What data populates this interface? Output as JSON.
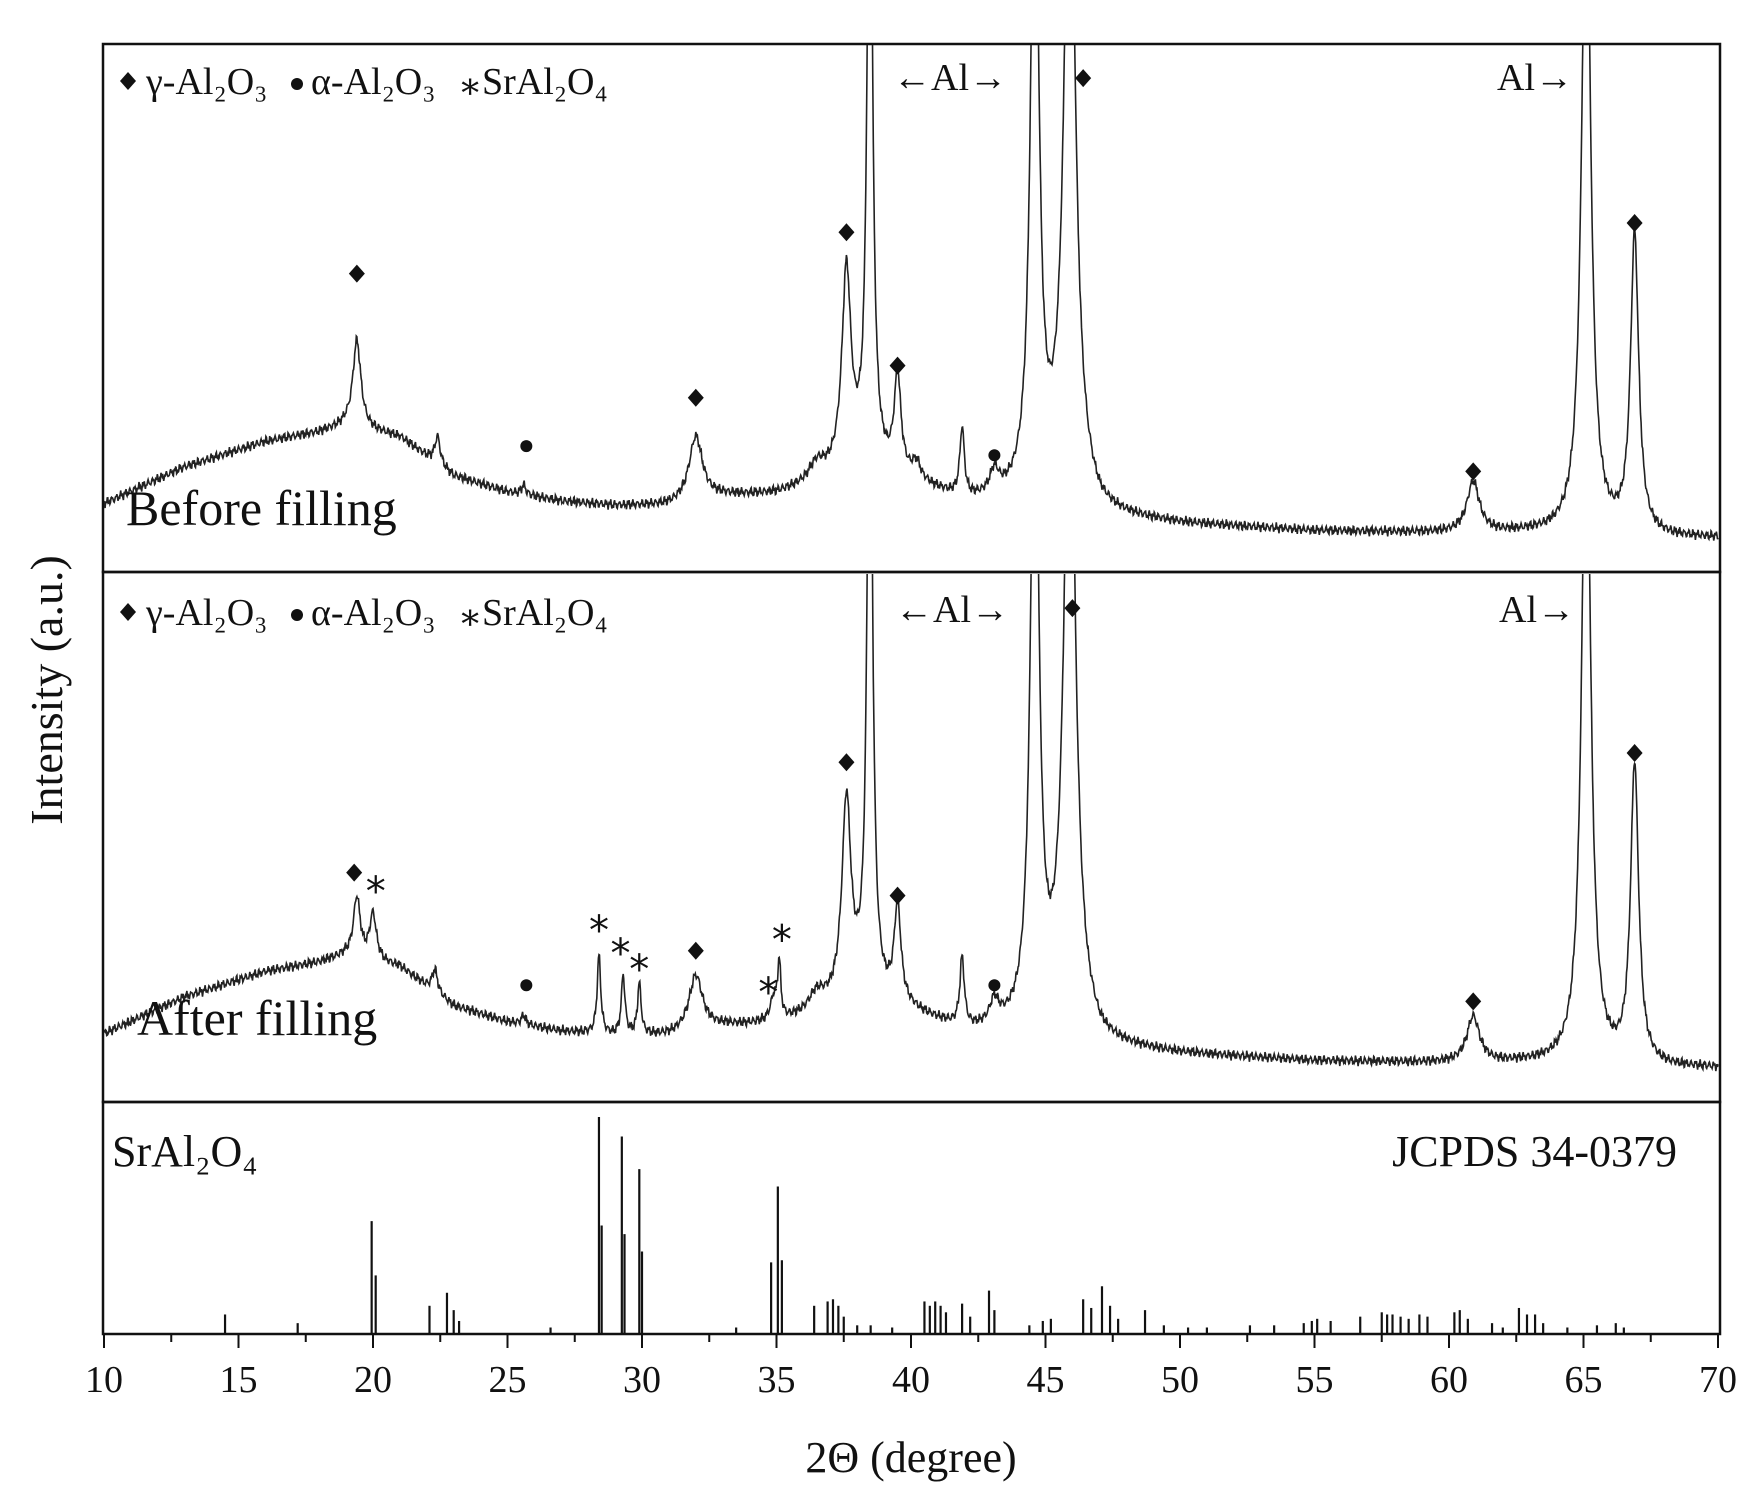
{
  "chart_data": {
    "type": "line",
    "x_axis": {
      "label": "2Θ (degree)",
      "range": [
        10,
        70
      ],
      "major_ticks": [
        10,
        15,
        20,
        25,
        30,
        35,
        40,
        45,
        50,
        55,
        60,
        65,
        70
      ],
      "minor_step": 2.5
    },
    "y_axis": {
      "label": "Intensity (a.u.)"
    },
    "legend": {
      "gamma": "γ-Al₂O₃",
      "alpha": "α-Al₂O₃",
      "sral": "SrAl₂O₄",
      "placement": "top-left of each XRD panel"
    },
    "panels": [
      {
        "label": "Before filling",
        "al_labels": [
          "←Al→",
          "Al→"
        ],
        "baseline_points": [
          [
            10,
            1.8
          ],
          [
            13,
            3.4
          ],
          [
            16,
            4.5
          ],
          [
            18,
            4.9
          ],
          [
            19,
            5.2
          ],
          [
            21,
            4.7
          ],
          [
            23,
            3.0
          ],
          [
            25,
            2.3
          ],
          [
            27,
            1.9
          ],
          [
            29,
            1.7
          ],
          [
            31,
            1.7
          ],
          [
            33,
            2.1
          ],
          [
            35,
            2.2
          ],
          [
            36.5,
            2.6
          ],
          [
            38,
            3.3
          ],
          [
            40,
            2.7
          ],
          [
            42,
            1.8
          ],
          [
            44,
            1.8
          ],
          [
            46,
            2.1
          ],
          [
            47,
            1.2
          ],
          [
            50,
            0.9
          ],
          [
            55,
            0.6
          ],
          [
            60,
            0.5
          ],
          [
            63,
            0.5
          ],
          [
            65,
            0.4
          ],
          [
            68,
            0.3
          ],
          [
            70,
            0.3
          ]
        ],
        "peaks": [
          {
            "x": 19.4,
            "h": 3.8,
            "w": 0.18
          },
          {
            "x": 22.4,
            "h": 1.2,
            "w": 0.12
          },
          {
            "x": 25.6,
            "h": 0.4,
            "w": 0.1
          },
          {
            "x": 32.0,
            "h": 2.8,
            "w": 0.3
          },
          {
            "x": 36.5,
            "h": 0.8,
            "w": 0.35
          },
          {
            "x": 37.6,
            "h": 8.6,
            "w": 0.2
          },
          {
            "x": 38.47,
            "h": 30.0,
            "w": 0.12
          },
          {
            "x": 39.5,
            "h": 4.2,
            "w": 0.15
          },
          {
            "x": 40.2,
            "h": 0.7,
            "w": 0.18
          },
          {
            "x": 41.9,
            "h": 3.0,
            "w": 0.1
          },
          {
            "x": 43.1,
            "h": 1.0,
            "w": 0.2
          },
          {
            "x": 44.6,
            "h": 30.0,
            "w": 0.18
          },
          {
            "x": 45.9,
            "h": 30.0,
            "w": 0.25
          },
          {
            "x": 60.9,
            "h": 2.2,
            "w": 0.28
          },
          {
            "x": 65.1,
            "h": 30.0,
            "w": 0.2
          },
          {
            "x": 66.9,
            "h": 13.0,
            "w": 0.18
          }
        ],
        "markers": [
          {
            "x": 19.4,
            "symbol": "diamond",
            "y": 11.8
          },
          {
            "x": 25.7,
            "symbol": "dot",
            "y": 4.3
          },
          {
            "x": 32.0,
            "symbol": "diamond",
            "y": 6.4
          },
          {
            "x": 37.6,
            "symbol": "diamond",
            "y": 13.6
          },
          {
            "x": 39.5,
            "symbol": "diamond",
            "y": 7.8
          },
          {
            "x": 43.1,
            "symbol": "dot",
            "y": 3.9
          },
          {
            "x": 46.4,
            "symbol": "diamond",
            "y": 20.3
          },
          {
            "x": 60.9,
            "symbol": "diamond",
            "y": 3.2
          },
          {
            "x": 66.9,
            "symbol": "diamond",
            "y": 14.0
          }
        ]
      },
      {
        "label": "After filling",
        "al_labels": [
          "←Al→",
          "Al→"
        ],
        "baseline_points": [
          [
            10,
            1.8
          ],
          [
            13,
            3.4
          ],
          [
            16,
            4.5
          ],
          [
            18,
            4.9
          ],
          [
            19,
            5.2
          ],
          [
            21,
            4.7
          ],
          [
            23,
            3.0
          ],
          [
            25,
            2.3
          ],
          [
            27,
            1.9
          ],
          [
            29,
            1.7
          ],
          [
            31,
            1.7
          ],
          [
            33,
            2.1
          ],
          [
            35,
            2.2
          ],
          [
            36.5,
            2.6
          ],
          [
            38,
            3.3
          ],
          [
            40,
            2.7
          ],
          [
            42,
            1.8
          ],
          [
            44,
            1.8
          ],
          [
            46,
            2.1
          ],
          [
            47,
            1.2
          ],
          [
            50,
            0.9
          ],
          [
            55,
            0.6
          ],
          [
            60,
            0.5
          ],
          [
            63,
            0.5
          ],
          [
            65,
            0.4
          ],
          [
            68,
            0.3
          ],
          [
            70,
            0.3
          ]
        ],
        "peaks": [
          {
            "x": 19.4,
            "h": 2.6,
            "w": 0.15
          },
          {
            "x": 20.0,
            "h": 2.0,
            "w": 0.15
          },
          {
            "x": 22.3,
            "h": 1.0,
            "w": 0.12
          },
          {
            "x": 25.6,
            "h": 0.4,
            "w": 0.1
          },
          {
            "x": 28.4,
            "h": 3.4,
            "w": 0.08
          },
          {
            "x": 29.3,
            "h": 2.6,
            "w": 0.08
          },
          {
            "x": 29.9,
            "h": 2.2,
            "w": 0.08
          },
          {
            "x": 32.0,
            "h": 2.4,
            "w": 0.3
          },
          {
            "x": 34.9,
            "h": 1.0,
            "w": 0.15
          },
          {
            "x": 35.1,
            "h": 2.4,
            "w": 0.07
          },
          {
            "x": 36.5,
            "h": 0.8,
            "w": 0.35
          },
          {
            "x": 37.6,
            "h": 8.6,
            "w": 0.2
          },
          {
            "x": 38.47,
            "h": 30.0,
            "w": 0.12
          },
          {
            "x": 39.5,
            "h": 4.2,
            "w": 0.15
          },
          {
            "x": 41.9,
            "h": 3.0,
            "w": 0.1
          },
          {
            "x": 43.1,
            "h": 1.0,
            "w": 0.2
          },
          {
            "x": 44.6,
            "h": 30.0,
            "w": 0.18
          },
          {
            "x": 45.9,
            "h": 30.0,
            "w": 0.25
          },
          {
            "x": 60.9,
            "h": 2.0,
            "w": 0.28
          },
          {
            "x": 65.1,
            "h": 30.0,
            "w": 0.2
          },
          {
            "x": 66.9,
            "h": 13.0,
            "w": 0.18
          }
        ],
        "markers": [
          {
            "x": 19.3,
            "symbol": "diamond",
            "y": 8.8
          },
          {
            "x": 20.1,
            "symbol": "star",
            "y": 8.0
          },
          {
            "x": 25.7,
            "symbol": "dot",
            "y": 3.9
          },
          {
            "x": 28.4,
            "symbol": "star",
            "y": 6.3
          },
          {
            "x": 29.2,
            "symbol": "star",
            "y": 5.3
          },
          {
            "x": 29.9,
            "symbol": "star",
            "y": 4.6
          },
          {
            "x": 32.0,
            "symbol": "diamond",
            "y": 5.4
          },
          {
            "x": 34.7,
            "symbol": "star",
            "y": 3.6
          },
          {
            "x": 35.2,
            "symbol": "star",
            "y": 5.9
          },
          {
            "x": 37.6,
            "symbol": "diamond",
            "y": 13.6
          },
          {
            "x": 39.5,
            "symbol": "diamond",
            "y": 7.8
          },
          {
            "x": 43.1,
            "symbol": "dot",
            "y": 3.9
          },
          {
            "x": 46.0,
            "symbol": "diamond",
            "y": 20.3
          },
          {
            "x": 60.9,
            "symbol": "diamond",
            "y": 3.2
          },
          {
            "x": 66.9,
            "symbol": "diamond",
            "y": 14.0
          }
        ]
      }
    ],
    "reference": {
      "label": "SrAl₂O₄",
      "card": "JCPDS 34-0379",
      "sticks": [
        [
          14.5,
          9
        ],
        [
          17.2,
          5
        ],
        [
          19.95,
          52
        ],
        [
          20.1,
          27
        ],
        [
          22.1,
          13
        ],
        [
          22.75,
          19
        ],
        [
          23.0,
          11
        ],
        [
          23.2,
          6
        ],
        [
          26.6,
          3
        ],
        [
          28.4,
          100
        ],
        [
          28.5,
          50
        ],
        [
          29.25,
          91
        ],
        [
          29.35,
          46
        ],
        [
          29.9,
          76
        ],
        [
          30.0,
          38
        ],
        [
          33.5,
          3
        ],
        [
          34.8,
          33
        ],
        [
          35.05,
          68
        ],
        [
          35.2,
          34
        ],
        [
          36.4,
          13
        ],
        [
          36.9,
          15
        ],
        [
          37.1,
          16
        ],
        [
          37.3,
          13
        ],
        [
          37.5,
          8
        ],
        [
          38.0,
          4
        ],
        [
          38.5,
          4
        ],
        [
          39.3,
          3
        ],
        [
          40.5,
          15
        ],
        [
          40.7,
          13
        ],
        [
          40.9,
          15
        ],
        [
          41.1,
          13
        ],
        [
          41.3,
          10
        ],
        [
          41.9,
          14
        ],
        [
          42.2,
          8
        ],
        [
          42.9,
          20
        ],
        [
          43.1,
          11
        ],
        [
          44.4,
          4
        ],
        [
          44.9,
          6
        ],
        [
          45.2,
          7
        ],
        [
          46.4,
          16
        ],
        [
          46.7,
          12
        ],
        [
          47.1,
          22
        ],
        [
          47.4,
          13
        ],
        [
          47.7,
          7
        ],
        [
          48.7,
          11
        ],
        [
          49.4,
          4
        ],
        [
          50.3,
          3
        ],
        [
          51.0,
          3
        ],
        [
          52.6,
          4
        ],
        [
          53.5,
          4
        ],
        [
          54.6,
          5
        ],
        [
          54.9,
          6
        ],
        [
          55.1,
          7
        ],
        [
          55.6,
          6
        ],
        [
          56.7,
          8
        ],
        [
          57.5,
          10
        ],
        [
          57.7,
          9
        ],
        [
          57.9,
          9
        ],
        [
          58.2,
          8
        ],
        [
          58.5,
          7
        ],
        [
          58.9,
          9
        ],
        [
          59.2,
          8
        ],
        [
          60.2,
          10
        ],
        [
          60.4,
          11
        ],
        [
          60.7,
          7
        ],
        [
          61.6,
          5
        ],
        [
          62.0,
          3
        ],
        [
          62.6,
          12
        ],
        [
          62.9,
          9
        ],
        [
          63.2,
          9
        ],
        [
          63.5,
          5
        ],
        [
          64.4,
          3
        ],
        [
          65.5,
          4
        ],
        [
          66.2,
          5
        ],
        [
          66.5,
          3
        ]
      ]
    }
  }
}
